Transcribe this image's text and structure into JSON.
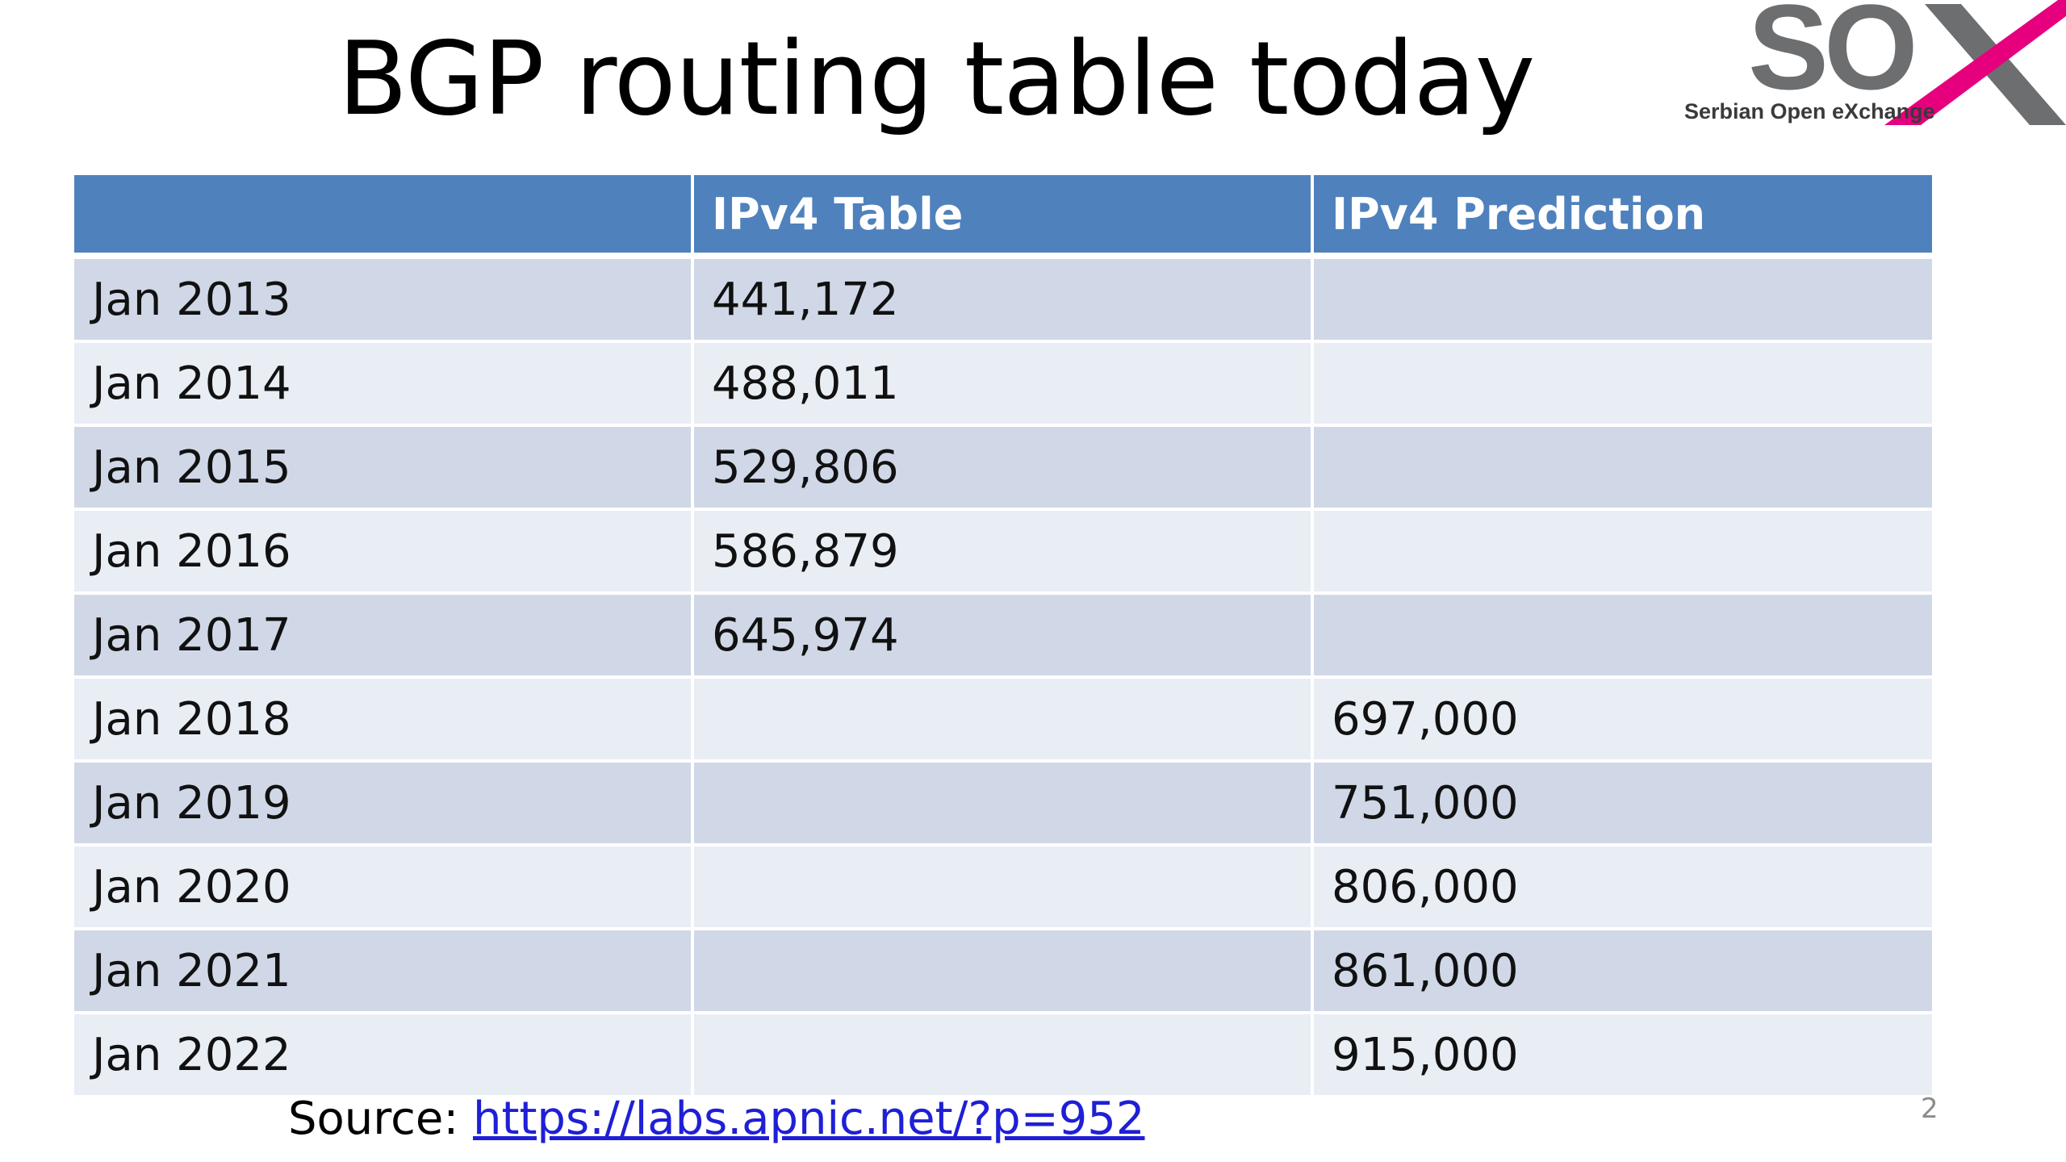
{
  "title": "BGP routing table today",
  "logo": {
    "text": "SOX",
    "tagline": "Serbian Open eXchange",
    "colors": {
      "so": "#6d6e70",
      "x_primary": "#e6007e",
      "x_secondary": "#6d6e70"
    }
  },
  "table": {
    "headers": [
      "",
      "IPv4 Table",
      "IPv4 Prediction"
    ],
    "rows": [
      [
        "Jan 2013",
        "441,172",
        ""
      ],
      [
        "Jan 2014",
        "488,011",
        ""
      ],
      [
        "Jan 2015",
        "529,806",
        ""
      ],
      [
        "Jan 2016",
        "586,879",
        ""
      ],
      [
        "Jan 2017",
        "645,974",
        ""
      ],
      [
        "Jan 2018",
        "",
        "697,000"
      ],
      [
        "Jan 2019",
        "",
        "751,000"
      ],
      [
        "Jan 2020",
        "",
        "806,000"
      ],
      [
        "Jan 2021",
        "",
        "861,000"
      ],
      [
        "Jan 2022",
        "",
        "915,000"
      ]
    ],
    "colors": {
      "header": "#4f81bd",
      "row_odd": "#d0d8e8",
      "row_even": "#e9edf4"
    }
  },
  "source": {
    "label": "Source: ",
    "link_text": "https://labs.apnic.net/?p=952"
  },
  "page_number": "2"
}
